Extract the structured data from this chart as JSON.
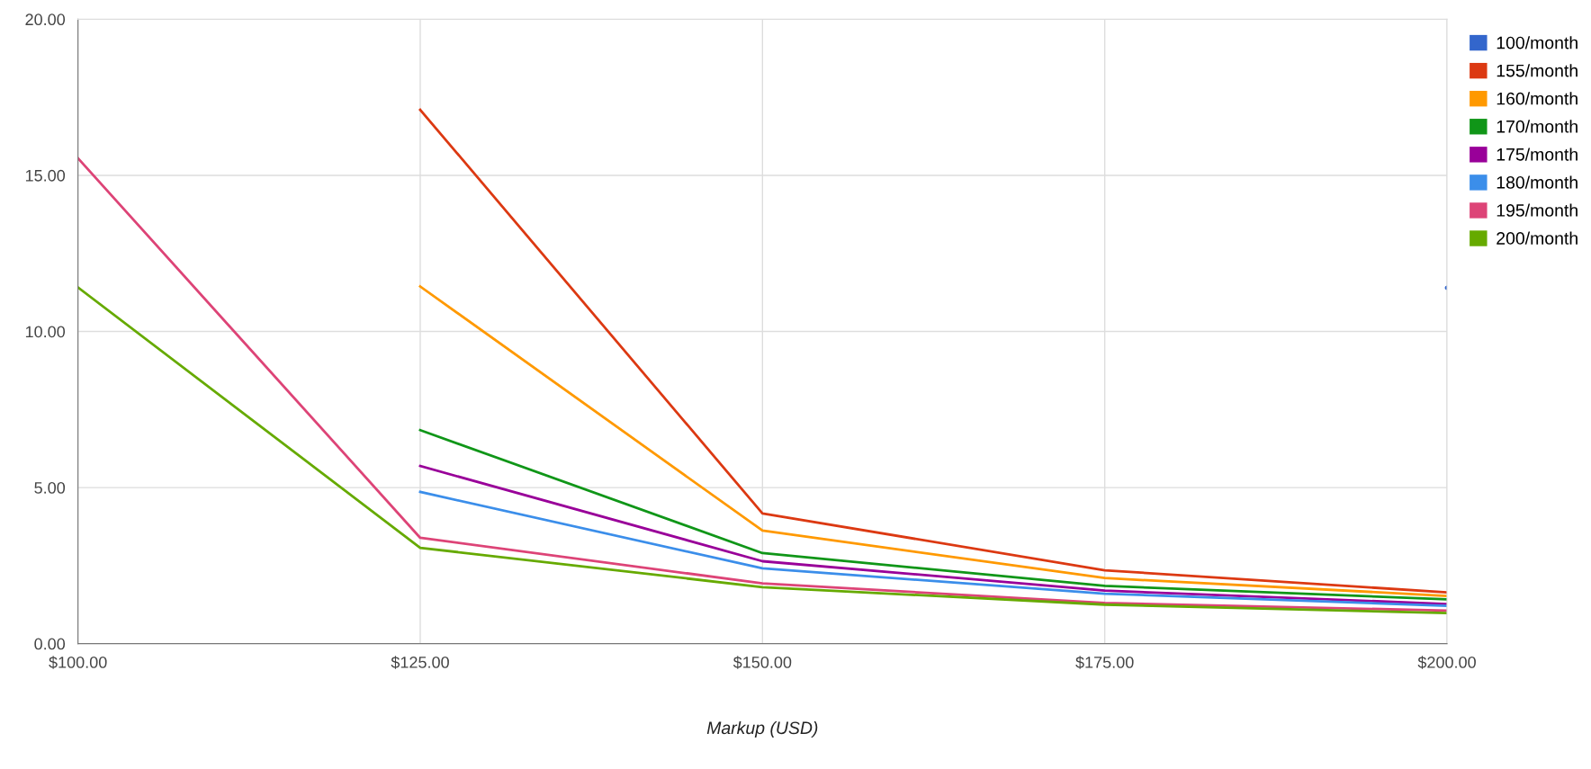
{
  "chart_data": {
    "type": "line",
    "xlabel": "Markup (USD)",
    "x": [
      100,
      125,
      150,
      175,
      200
    ],
    "xlim": [
      100,
      200
    ],
    "xticks": [
      {
        "value": 100,
        "label": "$100.00"
      },
      {
        "value": 125,
        "label": "$125.00"
      },
      {
        "value": 150,
        "label": "$150.00"
      },
      {
        "value": 175,
        "label": "$175.00"
      },
      {
        "value": 200,
        "label": "$200.00"
      }
    ],
    "ylim": [
      0,
      20
    ],
    "yticks": [
      {
        "value": 0,
        "label": "0.00"
      },
      {
        "value": 5,
        "label": "5.00"
      },
      {
        "value": 10,
        "label": "10.00"
      },
      {
        "value": 15,
        "label": "15.00"
      },
      {
        "value": 20,
        "label": "20.00"
      }
    ],
    "grid": true,
    "legend": "top right",
    "marker": "none",
    "line_style": "solid",
    "series": [
      {
        "name": "100/month",
        "color": "#3366cc",
        "values": [
          null,
          null,
          null,
          null,
          11.4
        ]
      },
      {
        "name": "155/month",
        "color": "#dc3912",
        "values": [
          null,
          17.1,
          4.17,
          2.35,
          1.64
        ]
      },
      {
        "name": "160/month",
        "color": "#ff9900",
        "values": [
          null,
          11.44,
          3.62,
          2.1,
          1.53
        ]
      },
      {
        "name": "170/month",
        "color": "#109618",
        "values": [
          null,
          6.84,
          2.9,
          1.85,
          1.42
        ]
      },
      {
        "name": "175/month",
        "color": "#990099",
        "values": [
          null,
          5.69,
          2.64,
          1.7,
          1.27
        ]
      },
      {
        "name": "180/month",
        "color": "#3b8eea",
        "values": [
          null,
          4.86,
          2.41,
          1.6,
          1.21
        ]
      },
      {
        "name": "195/month",
        "color": "#dd4477",
        "values": [
          15.55,
          3.39,
          1.93,
          1.3,
          1.06
        ]
      },
      {
        "name": "200/month",
        "color": "#66aa00",
        "values": [
          11.41,
          3.07,
          1.81,
          1.25,
          0.98
        ]
      }
    ]
  }
}
